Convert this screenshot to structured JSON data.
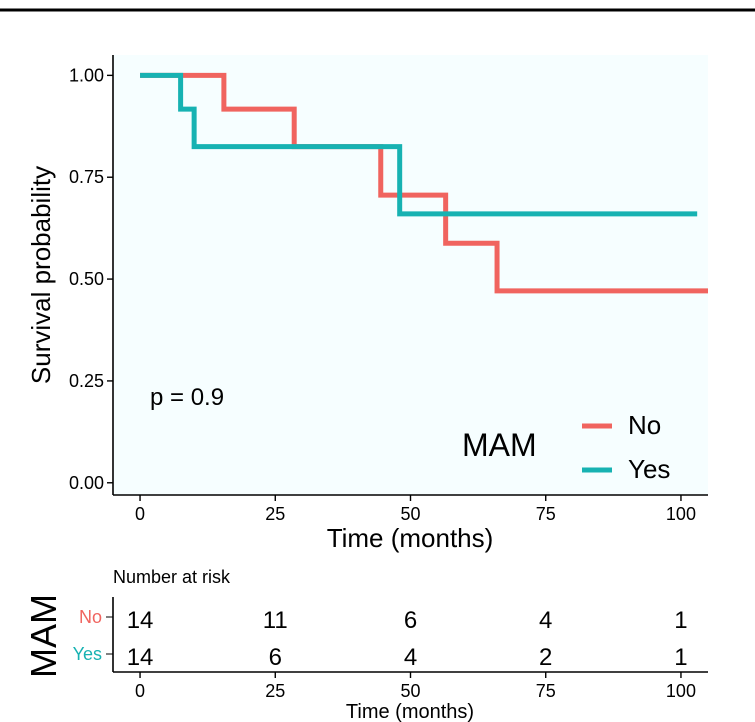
{
  "chart_data": {
    "type": "line",
    "subtype": "kaplan-meier step",
    "xlabel": "Time (months)",
    "ylabel": "Survival probability",
    "xlim": [
      -5,
      105
    ],
    "ylim": [
      -0.03,
      1.05
    ],
    "x_ticks": [
      0,
      25,
      50,
      75,
      100
    ],
    "x_tick_labels": [
      "0",
      "25",
      "50",
      "75",
      "100"
    ],
    "y_ticks": [
      0,
      0.25,
      0.5,
      0.75,
      1
    ],
    "y_tick_labels": [
      "0.00",
      "0.25",
      "0.50",
      "0.75",
      "1.00"
    ],
    "annotation": "p = 0.9",
    "grid": false,
    "legend": {
      "title": "MAM",
      "position": "bottom-right",
      "entries": [
        "No",
        "Yes"
      ]
    },
    "series": [
      {
        "name": "No",
        "color": "#F0645F",
        "x": [
          0,
          15.5,
          28.5,
          44.5,
          56.5,
          66,
          105
        ],
        "y": [
          1.0,
          0.917,
          0.825,
          0.706,
          0.588,
          0.471,
          0.471
        ]
      },
      {
        "name": "Yes",
        "color": "#17B2B2",
        "x": [
          0,
          7.5,
          10,
          48,
          103
        ],
        "y": [
          1.0,
          0.917,
          0.825,
          0.66,
          0.66
        ]
      }
    ],
    "risk_table": {
      "title": "Number at risk",
      "strata_title": "MAM",
      "xlabel": "Time (months)",
      "x_ticks": [
        0,
        25,
        50,
        75,
        100
      ],
      "x_tick_labels": [
        "0",
        "25",
        "50",
        "75",
        "100"
      ],
      "rows": [
        {
          "name": "No",
          "color": "#F0645F",
          "counts": [
            "14",
            "11",
            "6",
            "4",
            "1"
          ]
        },
        {
          "name": "Yes",
          "color": "#17B2B2",
          "counts": [
            "14",
            "6",
            "4",
            "2",
            "1"
          ]
        }
      ]
    }
  }
}
